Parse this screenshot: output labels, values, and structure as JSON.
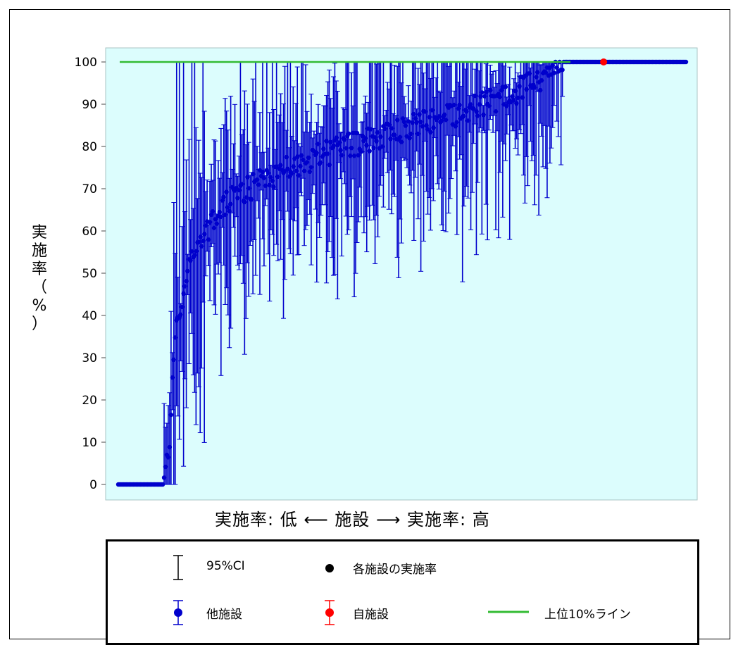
{
  "chart_data": {
    "type": "scatter",
    "ylabel": "実施率（%）",
    "xlabel": "実施率: 低 ⟵ 施設 ⟶ 実施率: 高",
    "ylim": [
      0,
      100
    ],
    "yticks": [
      0,
      10,
      20,
      30,
      40,
      50,
      60,
      70,
      80,
      90,
      100
    ],
    "grid": false,
    "facility_count": 410,
    "series": [
      {
        "name": "他施設",
        "color": "#0000cc",
        "profile": [
          {
            "rank": 0.0,
            "value": 0
          },
          {
            "rank": 0.08,
            "value": 0
          },
          {
            "rank": 0.09,
            "value": 10
          },
          {
            "rank": 0.1,
            "value": 35
          },
          {
            "rank": 0.13,
            "value": 55
          },
          {
            "rank": 0.2,
            "value": 68
          },
          {
            "rank": 0.3,
            "value": 75
          },
          {
            "rank": 0.4,
            "value": 80
          },
          {
            "rank": 0.5,
            "value": 84
          },
          {
            "rank": 0.6,
            "value": 88
          },
          {
            "rank": 0.7,
            "value": 93
          },
          {
            "rank": 0.76,
            "value": 97
          },
          {
            "rank": 0.79,
            "value": 100
          },
          {
            "rank": 1.0,
            "value": 100
          }
        ]
      },
      {
        "name": "自施設",
        "color": "#ff0000",
        "rank": 0.855,
        "value": 100
      }
    ],
    "reference_line": {
      "name": "上位10%ライン",
      "value": 100,
      "color": "#33bb33"
    }
  },
  "legend": {
    "ci": "95%CI",
    "point": "各施設の実施率",
    "others": "他施設",
    "self": "自施設",
    "top10": "上位10%ライン"
  },
  "labels": {
    "y_chars": [
      "実",
      "施",
      "率",
      "（",
      "%",
      "）"
    ],
    "x": "実施率: 低 ⟵ 施設 ⟶ 実施率: 高"
  },
  "colors": {
    "plot_bg": "#dcfdfd",
    "plot_border": "#a9c4c4",
    "others": "#0000cc",
    "self": "#ff0000",
    "line": "#33bb33"
  }
}
